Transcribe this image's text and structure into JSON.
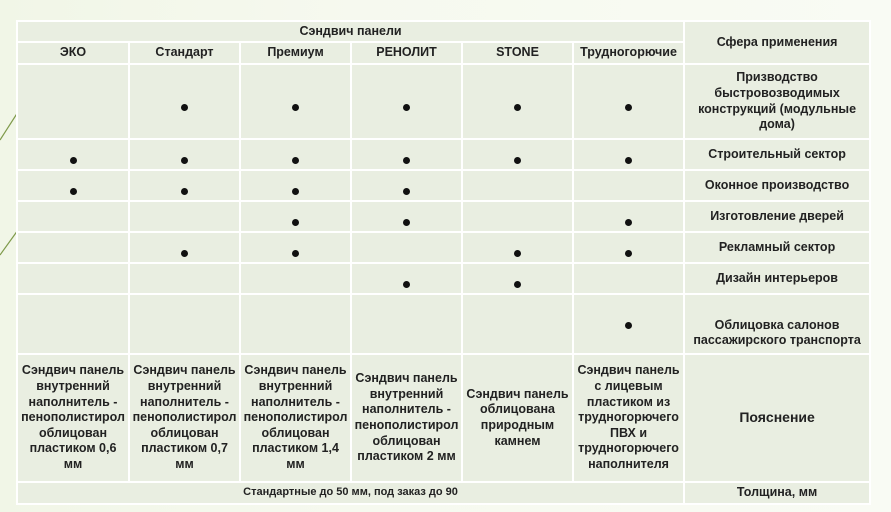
{
  "table": {
    "group_header": "Сэндвич панели",
    "sphere_header": "Сфера применения",
    "columns": [
      "ЭКО",
      "Стандарт",
      "Премиум",
      "РЕНОЛИТ",
      "STONE",
      "Трудногорючие"
    ],
    "rows": [
      {
        "label": "Призводство быстровозводимых конструкций (модульные дома)",
        "marks": [
          false,
          true,
          true,
          true,
          true,
          true
        ],
        "marker": "•"
      },
      {
        "label": "Строительный сектор",
        "marks": [
          true,
          true,
          true,
          true,
          true,
          true
        ],
        "marker": "•"
      },
      {
        "label": "Оконное производство",
        "marks": [
          true,
          true,
          true,
          true,
          false,
          false
        ],
        "marker": "•"
      },
      {
        "label": "Изготовление дверей",
        "marks": [
          false,
          false,
          true,
          true,
          false,
          true
        ],
        "marker": "•"
      },
      {
        "label": "Рекламный сектор",
        "marks": [
          false,
          true,
          true,
          false,
          true,
          true
        ],
        "marker": "•"
      },
      {
        "label": "Дизайн интерьеров",
        "marks": [
          false,
          false,
          false,
          true,
          true,
          false
        ],
        "marker": "•"
      },
      {
        "label": "Облицовка салонов пассажирского транспорта",
        "marks": [
          false,
          false,
          false,
          false,
          false,
          true
        ],
        "marker": "•"
      }
    ],
    "explanations": [
      "Сэндвич панель внутренний наполнитель - пенополистирол облицован пластиком 0,6 мм",
      "Сэндвич панель внутренний наполнитель - пенополистирол облицован пластиком 0,7 мм",
      "Сэндвич панель внутренний наполнитель - пенополистирол облицован пластиком 1,4 мм",
      "Сэндвич панель внутренний наполнитель - пенополистирол облицован пластиком 2 мм",
      "Сэндвич панель облицована природным камнем",
      "Сэндвич панель с лицевым пластиком из трудногорючего ПВХ и трудногорючего наполнителя"
    ],
    "explanation_label": "Пояснение",
    "thickness_text": "Стандартные до 50 мм, под заказ до 90",
    "thickness_label": "Толщина, мм"
  },
  "colors": {
    "cell_bg": "#e9eee1",
    "grid": "#ffffff",
    "text": "#222222",
    "deco_line": "#7e9a4a"
  }
}
